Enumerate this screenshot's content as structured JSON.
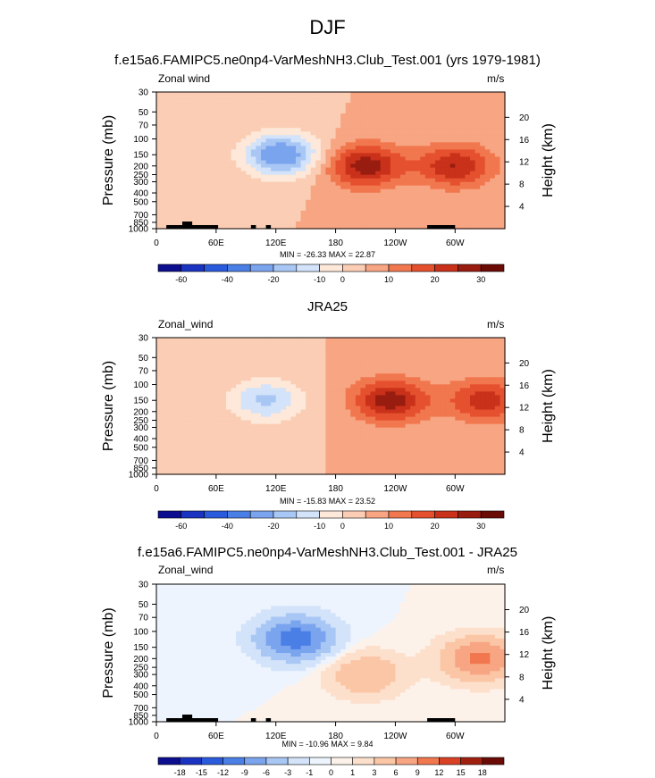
{
  "figure_title": "DJF",
  "colors": {
    "c11": [
      "#0d0d8f",
      "#1a33c0",
      "#2a5bdc",
      "#4a7fe6",
      "#7ba4ee",
      "#a9c7f4",
      "#d2e3fa",
      "#fde8d9",
      "#fbcdb4",
      "#f7a582",
      "#f1774f",
      "#e5502e",
      "#c9311a",
      "#981c10",
      "#6b0b06"
    ],
    "diff": [
      "#0d0d8f",
      "#1a33c0",
      "#2a5bdc",
      "#4a7fe6",
      "#7ba4ee",
      "#a9c7f4",
      "#d2e3fa",
      "#eef4fd",
      "#fdf2ea",
      "#fde0cc",
      "#fbc6a6",
      "#f7a582",
      "#f1774f",
      "#d94125",
      "#a0200f",
      "#6b0b06"
    ]
  },
  "panels": [
    {
      "title": "f.e15a6.FAMIPC5.ne0np4-VarMeshNH3.Club_Test.001 (yrs 1979-1981)",
      "left_label": "Zonal wind",
      "right_label": "m/s",
      "minmax": "MIN = -26.33  MAX = 22.87",
      "colorbar_ticks": [
        "-60",
        "-40",
        "-20",
        "-10",
        "0",
        "10",
        "20",
        "30"
      ]
    },
    {
      "title": "JRA25",
      "left_label": "Zonal_wind",
      "right_label": "m/s",
      "minmax": "MIN = -15.83  MAX = 23.52",
      "colorbar_ticks": [
        "-60",
        "-40",
        "-20",
        "-10",
        "0",
        "10",
        "20",
        "30"
      ]
    },
    {
      "title": "f.e15a6.FAMIPC5.ne0np4-VarMeshNH3.Club_Test.001 - JRA25",
      "left_label": "Zonal_wind",
      "right_label": "m/s",
      "minmax": "MIN = -10.96  MAX =  9.84",
      "colorbar_ticks": [
        "-18",
        "-15",
        "-12",
        "-9",
        "-6",
        "-3",
        "-1",
        "0",
        "1",
        "3",
        "6",
        "9",
        "12",
        "15",
        "18"
      ]
    }
  ],
  "chart_data": [
    {
      "type": "heatmap",
      "title": "f.e15a6.FAMIPC5.ne0np4-VarMeshNH3.Club_Test.001 (yrs 1979-1981)",
      "variable": "Zonal wind",
      "units": "m/s",
      "xlabel": "",
      "ylabel": "Pressure (mb)",
      "y2label": "Height (km)",
      "x_ticks": [
        "0",
        "60E",
        "120E",
        "180",
        "120W",
        "60W"
      ],
      "y_ticks": [
        "30",
        "50",
        "70",
        "100",
        "150",
        "200",
        "250",
        "300",
        "400",
        "500",
        "700",
        "850",
        "1000"
      ],
      "y2_ticks": [
        "20",
        "16",
        "12",
        "8",
        "4"
      ],
      "min": -26.33,
      "max": 22.87,
      "levels": [
        -60,
        -50,
        -40,
        -30,
        -20,
        -15,
        -10,
        -5,
        0,
        5,
        10,
        15,
        20,
        25,
        30
      ],
      "features": [
        {
          "kind": "jet",
          "sign": "negative",
          "center_lon": 125,
          "center_p": 150,
          "peak": -26
        },
        {
          "kind": "jet",
          "sign": "positive",
          "center_lon": 210,
          "center_p": 200,
          "peak": 23
        },
        {
          "kind": "jet",
          "sign": "positive",
          "center_lon": 300,
          "center_p": 200,
          "peak": 20
        }
      ]
    },
    {
      "type": "heatmap",
      "title": "JRA25",
      "variable": "Zonal_wind",
      "units": "m/s",
      "xlabel": "",
      "ylabel": "Pressure (mb)",
      "y2label": "Height (km)",
      "x_ticks": [
        "0",
        "60E",
        "120E",
        "180",
        "120W",
        "60W"
      ],
      "y_ticks": [
        "30",
        "50",
        "70",
        "100",
        "150",
        "200",
        "250",
        "300",
        "400",
        "500",
        "700",
        "850",
        "1000"
      ],
      "y2_ticks": [
        "20",
        "16",
        "12",
        "8",
        "4"
      ],
      "min": -15.83,
      "max": 23.52,
      "levels": [
        -60,
        -50,
        -40,
        -30,
        -20,
        -15,
        -10,
        -5,
        0,
        5,
        10,
        15,
        20,
        25,
        30
      ],
      "features": [
        {
          "kind": "jet",
          "sign": "negative",
          "center_lon": 110,
          "center_p": 150,
          "peak": -16
        },
        {
          "kind": "jet",
          "sign": "positive",
          "center_lon": 235,
          "center_p": 150,
          "peak": 23
        },
        {
          "kind": "jet",
          "sign": "positive",
          "center_lon": 330,
          "center_p": 150,
          "peak": 18
        }
      ]
    },
    {
      "type": "heatmap",
      "title": "f.e15a6.FAMIPC5.ne0np4-VarMeshNH3.Club_Test.001 - JRA25",
      "variable": "Zonal_wind",
      "units": "m/s",
      "xlabel": "",
      "ylabel": "Pressure (mb)",
      "y2label": "Height (km)",
      "x_ticks": [
        "0",
        "60E",
        "120E",
        "180",
        "120W",
        "60W"
      ],
      "y_ticks": [
        "30",
        "50",
        "70",
        "100",
        "150",
        "200",
        "250",
        "300",
        "400",
        "500",
        "700",
        "850",
        "1000"
      ],
      "y2_ticks": [
        "20",
        "16",
        "12",
        "8",
        "4"
      ],
      "min": -10.96,
      "max": 9.84,
      "levels": [
        -18,
        -15,
        -12,
        -9,
        -6,
        -3,
        -1,
        0,
        1,
        3,
        6,
        9,
        12,
        15,
        18
      ],
      "features": [
        {
          "kind": "anomaly",
          "sign": "negative",
          "center_lon": 140,
          "center_p": 120,
          "peak": -11
        },
        {
          "kind": "anomaly",
          "sign": "positive",
          "center_lon": 210,
          "center_p": 300,
          "peak": 6
        },
        {
          "kind": "anomaly",
          "sign": "positive",
          "center_lon": 325,
          "center_p": 200,
          "peak": 10
        }
      ]
    }
  ]
}
